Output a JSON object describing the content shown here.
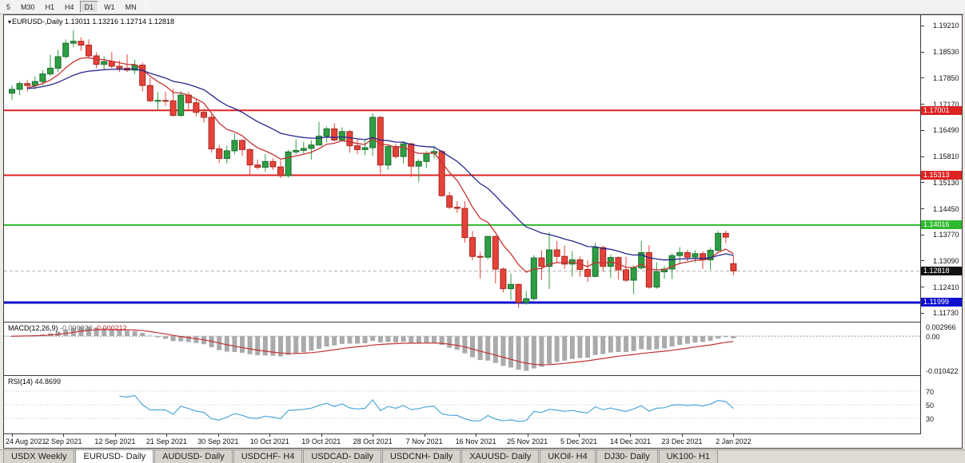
{
  "toolbar": {
    "timeframes": [
      {
        "label": "5",
        "active": false
      },
      {
        "label": "M30",
        "active": false
      },
      {
        "label": "H1",
        "active": false
      },
      {
        "label": "H4",
        "active": false
      },
      {
        "label": "D1",
        "active": true
      },
      {
        "label": "W1",
        "active": false
      },
      {
        "label": "MN",
        "active": false
      }
    ]
  },
  "symbol_bar": {
    "symbol": "EURUSD-,Daily",
    "ohlc": "1.13011 1.13216 1.12714 1.12818"
  },
  "price_axis": {
    "ticks": [
      "1.19210",
      "1.18530",
      "1.17850",
      "1.17170",
      "1.16490",
      "1.15810",
      "1.15130",
      "1.14450",
      "1.13770",
      "1.13090",
      "1.12410",
      "1.11730"
    ],
    "badges": [
      {
        "value": "1.17001",
        "price": 1.17001,
        "bg": "#dd2222",
        "fg": "#ffffff"
      },
      {
        "value": "1.15313",
        "price": 1.15313,
        "bg": "#dd2222",
        "fg": "#ffffff"
      },
      {
        "value": "1.14016",
        "price": 1.14016,
        "bg": "#2eb82e",
        "fg": "#ffffff"
      },
      {
        "value": "1.12818",
        "price": 1.12818,
        "bg": "#111111",
        "fg": "#ffffff"
      },
      {
        "value": "1.11999",
        "price": 1.11999,
        "bg": "#0f0fd0",
        "fg": "#ffffff"
      }
    ]
  },
  "macd_panel": {
    "name": "MACD(12,26,9)",
    "main_value": "-0.000020",
    "signal_value": "-0.000212",
    "axis_top": "0.002966",
    "axis_zero": "0.00",
    "axis_bottom": "-0.010422"
  },
  "rsi_panel": {
    "name": "RSI(14)",
    "value": "44.8699",
    "levels": [
      "70",
      "50",
      "30"
    ]
  },
  "date_axis": [
    "24 Aug 2021",
    "2 Sep 2021",
    "12 Sep 2021",
    "21 Sep 2021",
    "30 Sep 2021",
    "10 Oct 2021",
    "19 Oct 2021",
    "28 Oct 2021",
    "7 Nov 2021",
    "16 Nov 2021",
    "25 Nov 2021",
    "5 Dec 2021",
    "14 Dec 2021",
    "23 Dec 2021",
    "2 Jan 2022"
  ],
  "tabs": [
    {
      "label": "USDX Weekly",
      "active": false
    },
    {
      "label": "EURUSD- Daily",
      "active": true
    },
    {
      "label": "AUDUSD- Daily",
      "active": false
    },
    {
      "label": "USDCHF- H4",
      "active": false
    },
    {
      "label": "USDCAD- Daily",
      "active": false
    },
    {
      "label": "USDCNH- Daily",
      "active": false
    },
    {
      "label": "XAUUSD- Daily",
      "active": false
    },
    {
      "label": "UKOil- H4",
      "active": false
    },
    {
      "label": "DJ30- Daily",
      "active": false
    },
    {
      "label": "UK100- H1",
      "active": false
    }
  ],
  "colors": {
    "up": "#2f9e44",
    "up_border": "#1b6e2e",
    "down": "#e5423a",
    "down_border": "#a82820",
    "macd_hist": "#aaaaaa",
    "macd_signal": "#c43333",
    "rsi_line": "#4da6d9",
    "level_dots": "#c8c8c8",
    "bid_line": "#b0b0b0"
  },
  "chart_data": {
    "type": "candlestick",
    "symbol": "EURUSD",
    "timeframe": "Daily",
    "x_range": [
      "24 Aug 2021",
      "2 Jan 2022"
    ],
    "price_scale": {
      "min": 1.115,
      "max": 1.1948
    },
    "bid": 1.12818,
    "horizontal_lines": [
      {
        "price": 1.17001,
        "color": "#dd2222",
        "width": 2
      },
      {
        "price": 1.15313,
        "color": "#dd2222",
        "width": 2
      },
      {
        "price": 1.14016,
        "color": "#2eb82e",
        "width": 2
      },
      {
        "price": 1.11999,
        "color": "#0f0fd0",
        "width": 3
      }
    ],
    "overlays": [
      {
        "type": "EMA",
        "period": 8,
        "color": "#c43333"
      },
      {
        "type": "EMA",
        "period": 21,
        "color": "#26268c"
      }
    ],
    "indicators": [
      {
        "type": "MACD",
        "params": [
          12,
          26,
          9
        ],
        "current_main": -2e-05,
        "current_signal": -0.000212
      },
      {
        "type": "RSI",
        "params": [
          14
        ],
        "current": 44.8699
      }
    ],
    "candles": [
      [
        1.1745,
        1.1765,
        1.1727,
        1.1755
      ],
      [
        1.1755,
        1.1775,
        1.174,
        1.177
      ],
      [
        1.177,
        1.1779,
        1.175,
        1.1765
      ],
      [
        1.1765,
        1.1789,
        1.1755,
        1.1775
      ],
      [
        1.1775,
        1.1805,
        1.1765,
        1.1795
      ],
      [
        1.1795,
        1.1845,
        1.179,
        1.181
      ],
      [
        1.181,
        1.1857,
        1.18,
        1.184
      ],
      [
        1.184,
        1.1885,
        1.1835,
        1.1875
      ],
      [
        1.1875,
        1.1909,
        1.1865,
        1.188
      ],
      [
        1.188,
        1.189,
        1.1855,
        1.187
      ],
      [
        1.187,
        1.1885,
        1.1838,
        1.1842
      ],
      [
        1.1842,
        1.1851,
        1.181,
        1.182
      ],
      [
        1.182,
        1.1841,
        1.1805,
        1.1827
      ],
      [
        1.1827,
        1.1852,
        1.181,
        1.1815
      ],
      [
        1.1815,
        1.183,
        1.18,
        1.181
      ],
      [
        1.181,
        1.1846,
        1.18,
        1.1805
      ],
      [
        1.1805,
        1.1832,
        1.1795,
        1.1818
      ],
      [
        1.1818,
        1.1825,
        1.175,
        1.1765
      ],
      [
        1.1765,
        1.1785,
        1.1722,
        1.1725
      ],
      [
        1.1725,
        1.1748,
        1.17,
        1.1726
      ],
      [
        1.1726,
        1.1749,
        1.1712,
        1.1725
      ],
      [
        1.1725,
        1.1756,
        1.1684,
        1.1687
      ],
      [
        1.1687,
        1.175,
        1.1683,
        1.174
      ],
      [
        1.174,
        1.1748,
        1.17,
        1.172
      ],
      [
        1.172,
        1.173,
        1.1685,
        1.1695
      ],
      [
        1.1695,
        1.1705,
        1.1668,
        1.1682
      ],
      [
        1.1682,
        1.169,
        1.159,
        1.16
      ],
      [
        1.16,
        1.161,
        1.1563,
        1.1575
      ],
      [
        1.1575,
        1.1608,
        1.1562,
        1.1595
      ],
      [
        1.1595,
        1.164,
        1.1586,
        1.1622
      ],
      [
        1.1622,
        1.1625,
        1.1581,
        1.1598
      ],
      [
        1.1598,
        1.1602,
        1.1529,
        1.1558
      ],
      [
        1.1558,
        1.1572,
        1.1546,
        1.1552
      ],
      [
        1.1552,
        1.1586,
        1.154,
        1.1567
      ],
      [
        1.1567,
        1.1575,
        1.1545,
        1.1553
      ],
      [
        1.1553,
        1.157,
        1.1524,
        1.153
      ],
      [
        1.153,
        1.1597,
        1.1525,
        1.1592
      ],
      [
        1.1592,
        1.1624,
        1.1585,
        1.1596
      ],
      [
        1.1596,
        1.1618,
        1.1588,
        1.1601
      ],
      [
        1.1601,
        1.1622,
        1.1572,
        1.161
      ],
      [
        1.161,
        1.167,
        1.1609,
        1.1633
      ],
      [
        1.1633,
        1.1658,
        1.1617,
        1.1652
      ],
      [
        1.1652,
        1.1667,
        1.162,
        1.1623
      ],
      [
        1.1623,
        1.1656,
        1.162,
        1.1645
      ],
      [
        1.1645,
        1.1649,
        1.159,
        1.1608
      ],
      [
        1.1608,
        1.1626,
        1.1586,
        1.1598
      ],
      [
        1.1598,
        1.1626,
        1.1583,
        1.1603
      ],
      [
        1.1603,
        1.1692,
        1.1582,
        1.1682
      ],
      [
        1.1682,
        1.1686,
        1.1535,
        1.1558
      ],
      [
        1.1558,
        1.161,
        1.1545,
        1.1606
      ],
      [
        1.1606,
        1.1613,
        1.1575,
        1.158
      ],
      [
        1.158,
        1.162,
        1.1562,
        1.1613
      ],
      [
        1.1613,
        1.1616,
        1.1527,
        1.1555
      ],
      [
        1.1555,
        1.1573,
        1.1513,
        1.1567
      ],
      [
        1.1567,
        1.1594,
        1.155,
        1.1588
      ],
      [
        1.1588,
        1.1608,
        1.1575,
        1.1593
      ],
      [
        1.1593,
        1.1597,
        1.1475,
        1.1478
      ],
      [
        1.1478,
        1.1488,
        1.1443,
        1.1448
      ],
      [
        1.1448,
        1.1464,
        1.1433,
        1.1445
      ],
      [
        1.1445,
        1.1464,
        1.1356,
        1.1369
      ],
      [
        1.1369,
        1.1386,
        1.131,
        1.132
      ],
      [
        1.132,
        1.1332,
        1.1263,
        1.1318
      ],
      [
        1.1318,
        1.1374,
        1.1312,
        1.1372
      ],
      [
        1.1372,
        1.1374,
        1.125,
        1.1287
      ],
      [
        1.1287,
        1.1291,
        1.1226,
        1.1236
      ],
      [
        1.1236,
        1.1275,
        1.1206,
        1.1247
      ],
      [
        1.1247,
        1.125,
        1.1186,
        1.12
      ],
      [
        1.12,
        1.123,
        1.1194,
        1.121
      ],
      [
        1.121,
        1.1323,
        1.1205,
        1.1316
      ],
      [
        1.1316,
        1.1336,
        1.1258,
        1.1294
      ],
      [
        1.1294,
        1.1383,
        1.1235,
        1.1337
      ],
      [
        1.1337,
        1.136,
        1.1305,
        1.132
      ],
      [
        1.132,
        1.1348,
        1.1288,
        1.13
      ],
      [
        1.13,
        1.1334,
        1.1267,
        1.1311
      ],
      [
        1.1311,
        1.132,
        1.1267,
        1.1286
      ],
      [
        1.1286,
        1.131,
        1.1253,
        1.1268
      ],
      [
        1.1268,
        1.1355,
        1.1265,
        1.1343
      ],
      [
        1.1343,
        1.1348,
        1.128,
        1.1294
      ],
      [
        1.1294,
        1.1324,
        1.1264,
        1.1317
      ],
      [
        1.1317,
        1.132,
        1.126,
        1.1285
      ],
      [
        1.1285,
        1.1319,
        1.1253,
        1.1258
      ],
      [
        1.1258,
        1.1297,
        1.1222,
        1.129
      ],
      [
        1.129,
        1.136,
        1.1285,
        1.133
      ],
      [
        1.133,
        1.1349,
        1.1236,
        1.124
      ],
      [
        1.124,
        1.1305,
        1.1236,
        1.128
      ],
      [
        1.128,
        1.1295,
        1.1262,
        1.1287
      ],
      [
        1.1287,
        1.1328,
        1.1261,
        1.1322
      ],
      [
        1.1322,
        1.1344,
        1.13,
        1.133
      ],
      [
        1.133,
        1.1337,
        1.1308,
        1.1318
      ],
      [
        1.1318,
        1.1336,
        1.1304,
        1.1327
      ],
      [
        1.1327,
        1.1333,
        1.1287,
        1.1311
      ],
      [
        1.1311,
        1.1343,
        1.1285,
        1.1336
      ],
      [
        1.1336,
        1.1386,
        1.133,
        1.138
      ],
      [
        1.138,
        1.1387,
        1.1355,
        1.137
      ],
      [
        1.1301,
        1.1322,
        1.1271,
        1.1282
      ]
    ]
  }
}
